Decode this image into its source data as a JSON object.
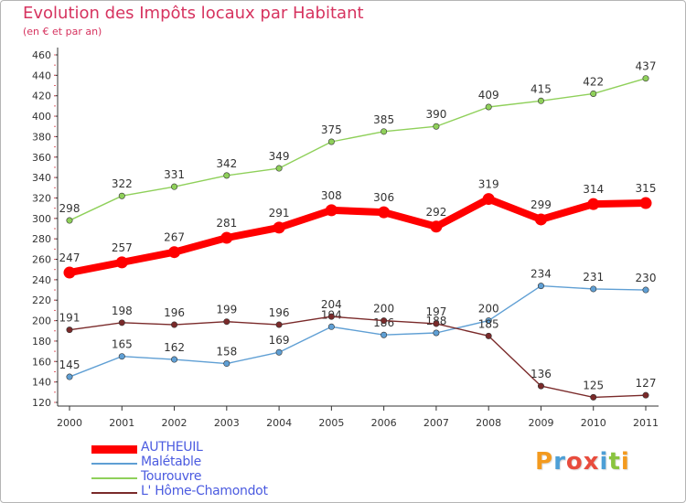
{
  "header": {
    "title": "Evolution des Impôts locaux par Habitant",
    "subtitle": "(en € et par an)"
  },
  "chart_data": {
    "type": "line",
    "title": "Evolution des Impôts locaux par Habitant",
    "subtitle": "(en € et par an)",
    "xlabel": "",
    "ylabel": "",
    "categories": [
      "2000",
      "2001",
      "2002",
      "2003",
      "2004",
      "2005",
      "2006",
      "2007",
      "2008",
      "2009",
      "2010",
      "2011"
    ],
    "ylim": [
      120,
      460
    ],
    "yticks": [
      120,
      140,
      160,
      180,
      200,
      220,
      240,
      260,
      280,
      300,
      320,
      340,
      360,
      380,
      400,
      420,
      440,
      460
    ],
    "grid": false,
    "legend_position": "bottom-left",
    "series": [
      {
        "name": "AUTHEUIL",
        "color": "#ff0000",
        "emphasis": true,
        "values": [
          247,
          257,
          267,
          281,
          291,
          308,
          306,
          292,
          319,
          299,
          314,
          315
        ]
      },
      {
        "name": "Malétable",
        "color": "#5f9fd4",
        "emphasis": false,
        "values": [
          145,
          165,
          162,
          158,
          169,
          194,
          186,
          188,
          200,
          234,
          231,
          230
        ]
      },
      {
        "name": "Tourouvre",
        "color": "#8fd05a",
        "emphasis": false,
        "values": [
          298,
          322,
          331,
          342,
          349,
          375,
          385,
          390,
          409,
          415,
          422,
          437
        ]
      },
      {
        "name": "L' Hôme-Chamondot",
        "color": "#7a2a2a",
        "emphasis": false,
        "values": [
          191,
          198,
          196,
          199,
          196,
          204,
          200,
          197,
          185,
          136,
          125,
          127
        ]
      }
    ]
  },
  "logo": {
    "letters": [
      "P",
      "r",
      "o",
      "x",
      "i",
      "t",
      "i"
    ],
    "colors": [
      "#f39a1e",
      "#4d9fd6",
      "#e84c3d",
      "#e84c3d",
      "#4d9fd6",
      "#8ac43f",
      "#f39a1e"
    ]
  }
}
